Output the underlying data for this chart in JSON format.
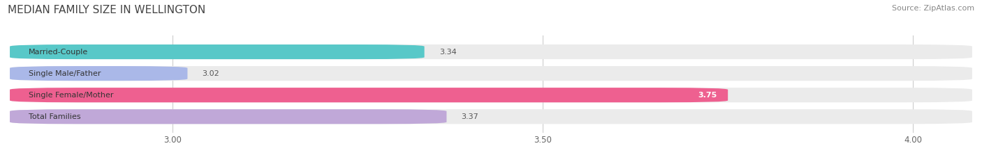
{
  "title": "MEDIAN FAMILY SIZE IN WELLINGTON",
  "source": "Source: ZipAtlas.com",
  "categories": [
    "Married-Couple",
    "Single Male/Father",
    "Single Female/Mother",
    "Total Families"
  ],
  "values": [
    3.34,
    3.02,
    3.75,
    3.37
  ],
  "bar_colors": [
    "#58c8c8",
    "#aab8e8",
    "#ee6090",
    "#c0a8d8"
  ],
  "value_inside": [
    false,
    false,
    true,
    false
  ],
  "xlim_left": 2.78,
  "xlim_right": 4.08,
  "xticks": [
    3.0,
    3.5,
    4.0
  ],
  "background_color": "#ffffff",
  "bar_bg_color": "#ebebeb",
  "bar_height": 0.68,
  "bar_gap": 0.32,
  "figsize": [
    14.06,
    2.33
  ],
  "dpi": 100,
  "title_fontsize": 11,
  "label_fontsize": 8,
  "value_fontsize": 8,
  "tick_fontsize": 8.5,
  "source_fontsize": 8
}
